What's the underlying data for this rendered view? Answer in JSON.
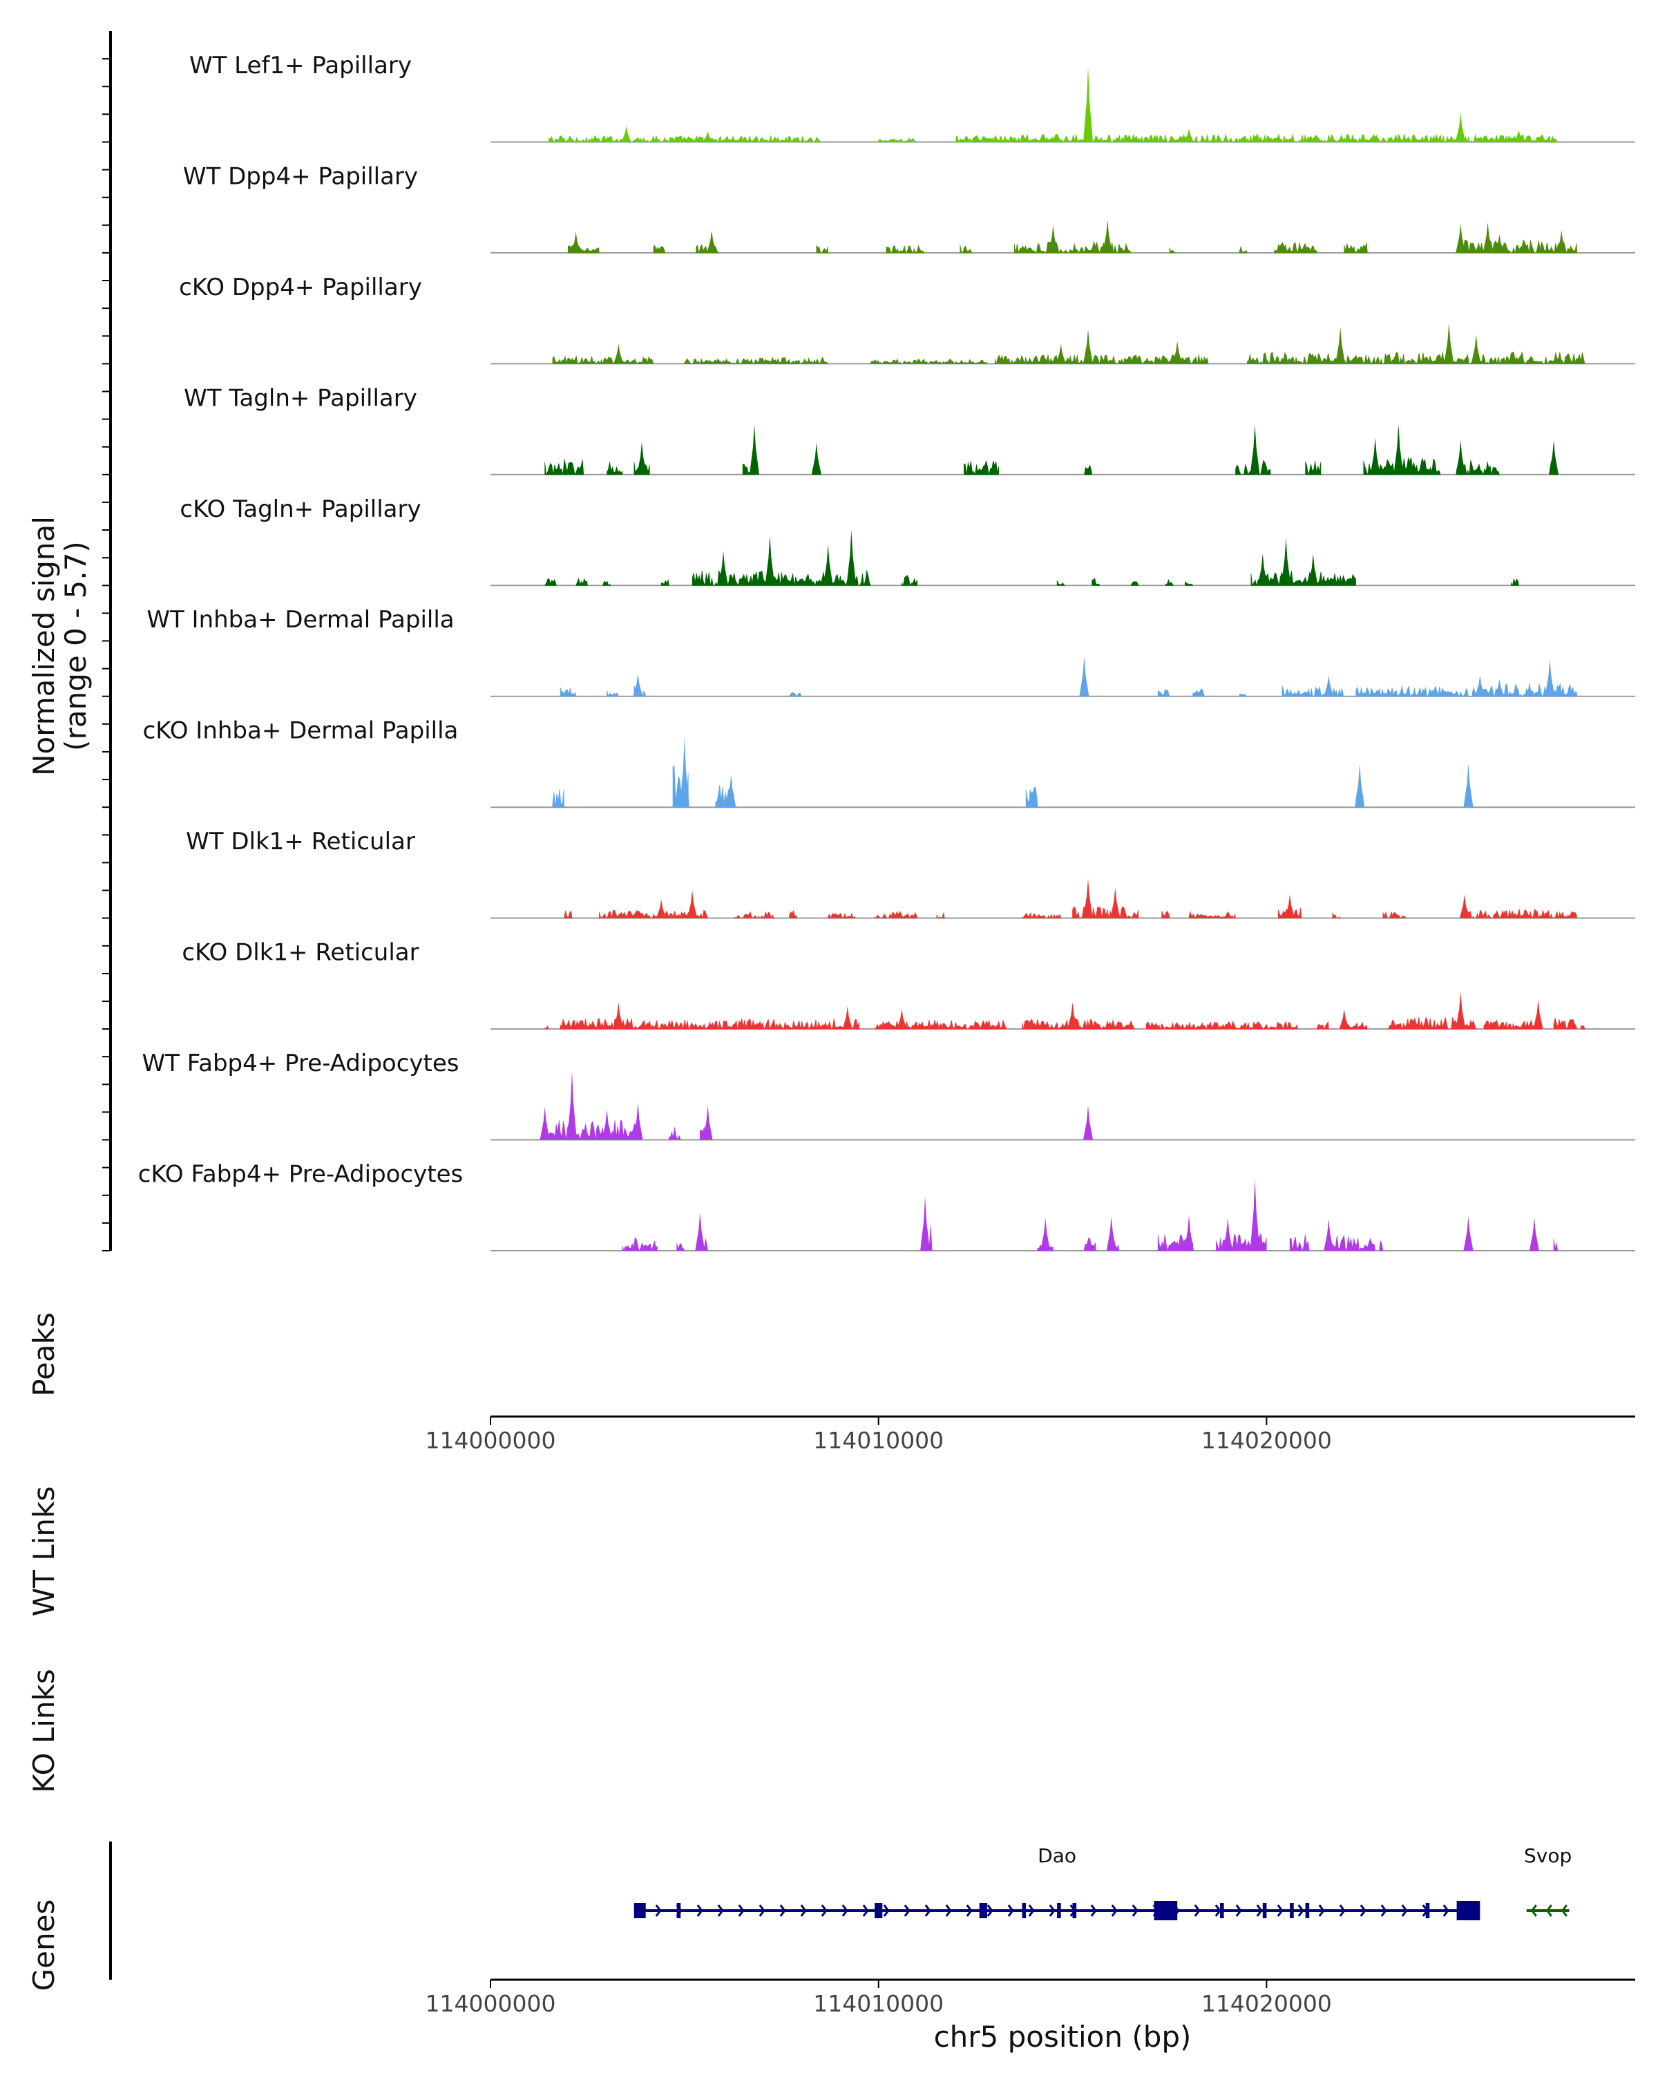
{
  "chart_data": {
    "type": "area",
    "title": "",
    "xlabel": "chr5 position (bp)",
    "xlim": [
      114000000,
      114029500
    ],
    "x_ticks": [
      "114000000",
      "114010000",
      "114020000"
    ],
    "coverage": {
      "ylabel": "Normalized signal",
      "ylabel_range": "(range 0 - 5.7)",
      "ylim": [
        0,
        5.7
      ],
      "tracks": [
        {
          "name": "WT Lef1+ Papillary",
          "color": "#66CC00",
          "regions": [
            [
              114001500,
              114008500,
              0.5
            ],
            [
              114010000,
              114011000,
              0.3
            ],
            [
              114012000,
              114027500,
              0.6
            ]
          ],
          "peaks": [
            [
              114015400,
              5.7
            ],
            [
              114025000,
              2.2
            ],
            [
              114003500,
              1.2
            ],
            [
              114005600,
              0.8
            ],
            [
              114018000,
              1.0
            ],
            [
              114026500,
              0.9
            ]
          ]
        },
        {
          "name": "WT Dpp4+ Papillary",
          "color": "#4C8C0A",
          "regions": [
            [
              114002000,
              114002800,
              0.8
            ],
            [
              114004200,
              114004500,
              0.6
            ],
            [
              114005300,
              114005900,
              0.9
            ],
            [
              114008400,
              114008700,
              0.6
            ],
            [
              114010200,
              114011200,
              0.6
            ],
            [
              114012100,
              114012400,
              0.7
            ],
            [
              114013500,
              114016500,
              0.9
            ],
            [
              114017500,
              114017700,
              0.6
            ],
            [
              114019300,
              114019500,
              0.5
            ],
            [
              114020200,
              114021300,
              0.8
            ],
            [
              114022000,
              114022600,
              0.8
            ],
            [
              114025000,
              114028000,
              1.0
            ]
          ],
          "peaks": [
            [
              114015900,
              2.5
            ],
            [
              114014500,
              2.1
            ],
            [
              114025000,
              2.2
            ],
            [
              114025700,
              2.3
            ],
            [
              114005700,
              1.7
            ],
            [
              114002200,
              1.6
            ],
            [
              114026000,
              1.4
            ],
            [
              114027600,
              1.7
            ]
          ]
        },
        {
          "name": "cKO Dpp4+ Papillary",
          "color": "#4C8C0A",
          "regions": [
            [
              114001600,
              114004200,
              0.6
            ],
            [
              114005000,
              114008700,
              0.5
            ],
            [
              114009800,
              114012800,
              0.4
            ],
            [
              114013000,
              114018500,
              0.7
            ],
            [
              114019500,
              114028200,
              0.9
            ]
          ],
          "peaks": [
            [
              114015400,
              2.6
            ],
            [
              114021900,
              2.8
            ],
            [
              114024700,
              3.1
            ],
            [
              114025400,
              2.2
            ],
            [
              114003300,
              1.5
            ],
            [
              114014700,
              1.5
            ],
            [
              114017700,
              1.7
            ]
          ]
        },
        {
          "name": "WT Tagln+ Papillary",
          "color": "#006400",
          "regions": [
            [
              114001400,
              114002400,
              1.2
            ],
            [
              114003000,
              114003400,
              1.0
            ],
            [
              114003700,
              114004100,
              1.2
            ],
            [
              114006500,
              114006800,
              1.0
            ],
            [
              114008300,
              114008500,
              1.2
            ],
            [
              114012200,
              114013100,
              1.2
            ],
            [
              114015300,
              114015500,
              1.0
            ],
            [
              114019200,
              114020100,
              1.3
            ],
            [
              114021000,
              114021400,
              1.2
            ],
            [
              114022500,
              114024500,
              1.3
            ],
            [
              114024900,
              114026000,
              1.2
            ],
            [
              114027300,
              114027500,
              1.0
            ]
          ],
          "peaks": [
            [
              114006800,
              3.8
            ],
            [
              114019700,
              3.8
            ],
            [
              114023400,
              3.8
            ],
            [
              114025000,
              2.6
            ],
            [
              114003900,
              2.5
            ],
            [
              114022800,
              2.8
            ],
            [
              114027400,
              2.6
            ],
            [
              114008400,
              2.4
            ]
          ]
        },
        {
          "name": "cKO Tagln+ Papillary",
          "color": "#006400",
          "regions": [
            [
              114001400,
              114001700,
              0.6
            ],
            [
              114002200,
              114002500,
              0.6
            ],
            [
              114002900,
              114003100,
              0.6
            ],
            [
              114004400,
              114004600,
              0.6
            ],
            [
              114005200,
              114009800,
              1.2
            ],
            [
              114010600,
              114011000,
              0.8
            ],
            [
              114014600,
              114014800,
              0.5
            ],
            [
              114015500,
              114015700,
              0.6
            ],
            [
              114016500,
              114016700,
              0.5
            ],
            [
              114017400,
              114017600,
              0.5
            ],
            [
              114017900,
              114018100,
              0.5
            ],
            [
              114019600,
              114022300,
              1.2
            ],
            [
              114026300,
              114026500,
              0.6
            ]
          ],
          "peaks": [
            [
              114009300,
              4.2
            ],
            [
              114007200,
              3.8
            ],
            [
              114020500,
              3.6
            ],
            [
              114006000,
              2.6
            ],
            [
              114008700,
              3.1
            ],
            [
              114019900,
              2.4
            ],
            [
              114021200,
              2.4
            ]
          ]
        },
        {
          "name": "WT Inhba+ Dermal Papilla",
          "color": "#5DA5E8",
          "regions": [
            [
              114001800,
              114002200,
              0.7
            ],
            [
              114003000,
              114003300,
              0.7
            ],
            [
              114003700,
              114004000,
              0.9
            ],
            [
              114007700,
              114008000,
              0.5
            ],
            [
              114017200,
              114017500,
              0.5
            ],
            [
              114018100,
              114018400,
              0.8
            ],
            [
              114019300,
              114019500,
              0.5
            ],
            [
              114020400,
              114022000,
              0.8
            ],
            [
              114022300,
              114025200,
              0.8
            ],
            [
              114025300,
              114028000,
              1.0
            ]
          ],
          "peaks": [
            [
              114015300,
              3.0
            ],
            [
              114027300,
              2.8
            ],
            [
              114025500,
              1.6
            ],
            [
              114026000,
              1.3
            ],
            [
              114003800,
              1.7
            ],
            [
              114021600,
              1.6
            ]
          ]
        },
        {
          "name": "cKO Inhba+ Dermal Papilla",
          "color": "#5DA5E8",
          "regions": [
            [
              114001600,
              114001900,
              1.7
            ],
            [
              114004700,
              114005100,
              3.5
            ],
            [
              114005800,
              114006300,
              1.7
            ],
            [
              114013800,
              114014100,
              1.7
            ],
            [
              114022300,
              114022500,
              1.7
            ],
            [
              114025100,
              114025300,
              1.7
            ]
          ],
          "peaks": [
            [
              114005000,
              5.3
            ],
            [
              114006200,
              2.5
            ],
            [
              114022400,
              3.3
            ],
            [
              114025200,
              3.3
            ]
          ]
        },
        {
          "name": "WT Dlk1+ Reticular",
          "color": "#EE3333",
          "regions": [
            [
              114001900,
              114002100,
              0.6
            ],
            [
              114002800,
              114005600,
              0.6
            ],
            [
              114006300,
              114007300,
              0.5
            ],
            [
              114007700,
              114007900,
              0.6
            ],
            [
              114008700,
              114009400,
              0.4
            ],
            [
              114009900,
              114011000,
              0.6
            ],
            [
              114011500,
              114011700,
              0.6
            ],
            [
              114013700,
              114014700,
              0.5
            ],
            [
              114015000,
              114016700,
              0.9
            ],
            [
              114017300,
              114017500,
              0.6
            ],
            [
              114018000,
              114019200,
              0.5
            ],
            [
              114020300,
              114020900,
              0.8
            ],
            [
              114021700,
              114021900,
              0.6
            ],
            [
              114023000,
              114023600,
              0.5
            ],
            [
              114025000,
              114028000,
              0.7
            ]
          ],
          "peaks": [
            [
              114015400,
              3.0
            ],
            [
              114016100,
              2.3
            ],
            [
              114005200,
              2.1
            ],
            [
              114020600,
              1.8
            ],
            [
              114025100,
              1.8
            ],
            [
              114004400,
              1.4
            ]
          ]
        },
        {
          "name": "cKO Dlk1+ Reticular",
          "color": "#EE3333",
          "regions": [
            [
              114001400,
              114001500,
              0.3
            ],
            [
              114001800,
              114009500,
              0.8
            ],
            [
              114009900,
              114013300,
              0.7
            ],
            [
              114013700,
              114016600,
              0.8
            ],
            [
              114016900,
              114020800,
              0.6
            ],
            [
              114021300,
              114021600,
              0.6
            ],
            [
              114022000,
              114022600,
              0.8
            ],
            [
              114023100,
              114025400,
              0.9
            ],
            [
              114025600,
              114027100,
              0.7
            ],
            [
              114027400,
              114028000,
              0.9
            ],
            [
              114028100,
              114028200,
              0.5
            ]
          ],
          "peaks": [
            [
              114025000,
              2.8
            ],
            [
              114027000,
              2.2
            ],
            [
              114003300,
              2.0
            ],
            [
              114009200,
              1.7
            ],
            [
              114015000,
              2.0
            ],
            [
              114022000,
              1.5
            ],
            [
              114010600,
              1.5
            ]
          ]
        },
        {
          "name": "WT Fabp4+ Pre-Adipocytes",
          "color": "#B03AE8",
          "regions": [
            [
              114001300,
              114003800,
              1.6
            ],
            [
              114004600,
              114004900,
              1.0
            ],
            [
              114005400,
              114005600,
              1.0
            ],
            [
              114015400,
              114015500,
              1.0
            ]
          ],
          "peaks": [
            [
              114002100,
              5.2
            ],
            [
              114003800,
              2.8
            ],
            [
              114005600,
              2.6
            ],
            [
              114015400,
              2.6
            ],
            [
              114001400,
              2.5
            ],
            [
              114003000,
              2.3
            ]
          ]
        },
        {
          "name": "cKO Fabp4+ Pre-Adipocytes",
          "color": "#B03AE8",
          "regions": [
            [
              114003400,
              114004300,
              1.2
            ],
            [
              114004800,
              114005000,
              1.0
            ],
            [
              114005400,
              114005600,
              1.0
            ],
            [
              114011200,
              114011400,
              2.0
            ],
            [
              114014100,
              114014500,
              1.2
            ],
            [
              114015300,
              114015600,
              1.0
            ],
            [
              114016000,
              114016200,
              1.0
            ],
            [
              114017200,
              114018100,
              1.3
            ],
            [
              114018700,
              114019600,
              1.3
            ],
            [
              114019600,
              114020000,
              2.5
            ],
            [
              114020600,
              114021100,
              1.3
            ],
            [
              114021600,
              114022800,
              1.2
            ],
            [
              114022900,
              114023000,
              1.0
            ],
            [
              114025100,
              114025200,
              1.0
            ],
            [
              114026800,
              114027000,
              1.0
            ],
            [
              114027400,
              114027500,
              1.0
            ]
          ],
          "peaks": [
            [
              114019700,
              5.5
            ],
            [
              114011200,
              4.1
            ],
            [
              114005400,
              2.9
            ],
            [
              114014300,
              2.5
            ],
            [
              114016000,
              2.6
            ],
            [
              114018000,
              2.7
            ],
            [
              114019000,
              2.5
            ],
            [
              114021600,
              2.4
            ],
            [
              114025200,
              2.6
            ],
            [
              114026900,
              2.5
            ]
          ]
        }
      ]
    },
    "panels": [
      "Peaks",
      "WT Links",
      "KO Links",
      "Genes"
    ],
    "genes": [
      {
        "name": "Dao",
        "start": 114003700,
        "end": 114025500,
        "strand": "+",
        "exons": [
          [
            114003700,
            114004000
          ],
          [
            114004800,
            114004900
          ],
          [
            114009900,
            114010100
          ],
          [
            114012600,
            114012800
          ],
          [
            114013700,
            114013800
          ],
          [
            114014600,
            114014700
          ],
          [
            114015000,
            114015100
          ],
          [
            114017100,
            114017700
          ],
          [
            114018800,
            114018900
          ],
          [
            114019900,
            114020000
          ],
          [
            114020600,
            114020700
          ],
          [
            114021000,
            114021100
          ],
          [
            114024100,
            114024200
          ],
          [
            114024900,
            114025500
          ]
        ]
      },
      {
        "name": "Svop",
        "start": 114026700,
        "end": 114027800,
        "strand": "-",
        "exons": []
      }
    ]
  }
}
